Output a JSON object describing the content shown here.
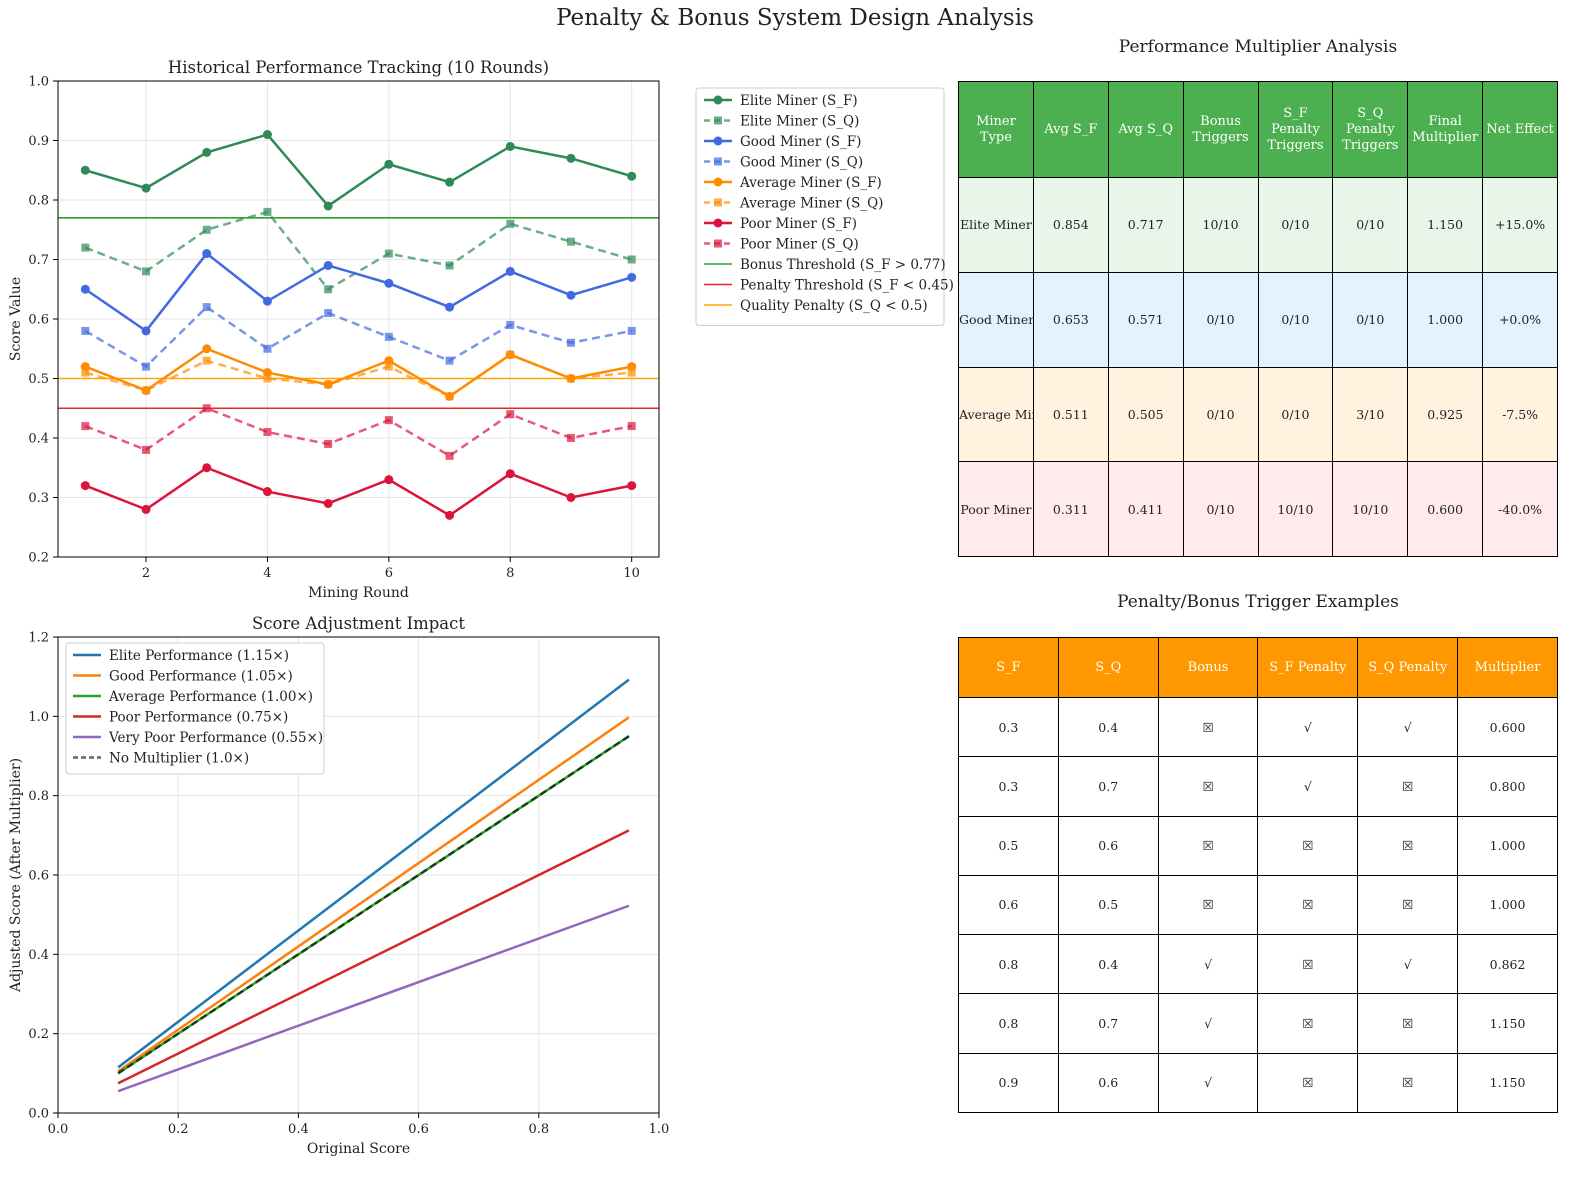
{
  "figure": {
    "title": "Penalty & Bonus System Design Analysis"
  },
  "chart_data": [
    {
      "type": "line",
      "title": "Historical Performance Tracking (10 Rounds)",
      "xlabel": "Mining Round",
      "ylabel": "Score Value",
      "xlim": [
        0.55,
        10.45
      ],
      "ylim": [
        0.2,
        1.0
      ],
      "xticks": [
        2,
        4,
        6,
        8,
        10
      ],
      "yticks": [
        0.2,
        0.3,
        0.4,
        0.5,
        0.6,
        0.7,
        0.8,
        0.9,
        1.0
      ],
      "grid": true,
      "legend_position": "outside-right",
      "x": [
        1,
        2,
        3,
        4,
        5,
        6,
        7,
        8,
        9,
        10
      ],
      "series": [
        {
          "name": "Elite Miner (S_F)",
          "color": "#2e8b57",
          "style": "solid",
          "marker": "circle",
          "values": [
            0.85,
            0.82,
            0.88,
            0.91,
            0.79,
            0.86,
            0.83,
            0.89,
            0.87,
            0.84
          ]
        },
        {
          "name": "Elite Miner (S_Q)",
          "color": "#2e8b57",
          "style": "dashed",
          "marker": "square",
          "values": [
            0.72,
            0.68,
            0.75,
            0.78,
            0.65,
            0.71,
            0.69,
            0.76,
            0.73,
            0.7
          ]
        },
        {
          "name": "Good Miner (S_F)",
          "color": "#4169e1",
          "style": "solid",
          "marker": "circle",
          "values": [
            0.65,
            0.58,
            0.71,
            0.63,
            0.69,
            0.66,
            0.62,
            0.68,
            0.64,
            0.67
          ]
        },
        {
          "name": "Good Miner (S_Q)",
          "color": "#4169e1",
          "style": "dashed",
          "marker": "square",
          "values": [
            0.58,
            0.52,
            0.62,
            0.55,
            0.61,
            0.57,
            0.53,
            0.59,
            0.56,
            0.58
          ]
        },
        {
          "name": "Average Miner (S_F)",
          "color": "#ff8c00",
          "style": "solid",
          "marker": "circle",
          "values": [
            0.52,
            0.48,
            0.55,
            0.51,
            0.49,
            0.53,
            0.47,
            0.54,
            0.5,
            0.52
          ]
        },
        {
          "name": "Average Miner (S_Q)",
          "color": "#ff8c00",
          "style": "dashed",
          "marker": "square",
          "values": [
            0.51,
            0.48,
            0.53,
            0.5,
            0.49,
            0.52,
            0.47,
            0.54,
            0.5,
            0.51
          ]
        },
        {
          "name": "Poor Miner (S_F)",
          "color": "#dc143c",
          "style": "solid",
          "marker": "circle",
          "values": [
            0.32,
            0.28,
            0.35,
            0.31,
            0.29,
            0.33,
            0.27,
            0.34,
            0.3,
            0.32
          ]
        },
        {
          "name": "Poor Miner (S_Q)",
          "color": "#dc143c",
          "style": "dashed",
          "marker": "square",
          "values": [
            0.42,
            0.38,
            0.45,
            0.41,
            0.39,
            0.43,
            0.37,
            0.44,
            0.4,
            0.42
          ]
        }
      ],
      "hlines": [
        {
          "name": "Bonus Threshold (S_F > 0.77)",
          "y": 0.77,
          "color": "#2ca02c"
        },
        {
          "name": "Penalty Threshold (S_F < 0.45)",
          "y": 0.45,
          "color": "#e8262a"
        },
        {
          "name": "Quality Penalty (S_Q < 0.5)",
          "y": 0.5,
          "color": "#ffa500"
        }
      ]
    },
    {
      "type": "line",
      "title": "Score Adjustment Impact",
      "xlabel": "Original Score",
      "ylabel": "Adjusted Score (After Multiplier)",
      "xlim": [
        0.0,
        1.0
      ],
      "ylim": [
        0.0,
        1.2
      ],
      "xticks": [
        0.0,
        0.2,
        0.4,
        0.6,
        0.8,
        1.0
      ],
      "yticks": [
        0.0,
        0.2,
        0.4,
        0.6,
        0.8,
        1.0,
        1.2
      ],
      "grid": true,
      "legend_position": "upper-left",
      "x_range": [
        0.1,
        0.95
      ],
      "series": [
        {
          "name": "Elite Performance (1.15×)",
          "multiplier": 1.15,
          "color": "#1f77b4",
          "style": "solid"
        },
        {
          "name": "Good Performance (1.05×)",
          "multiplier": 1.05,
          "color": "#ff7f0e",
          "style": "solid"
        },
        {
          "name": "Average Performance (1.00×)",
          "multiplier": 1.0,
          "color": "#2ca02c",
          "style": "solid"
        },
        {
          "name": "Poor Performance (0.75×)",
          "multiplier": 0.75,
          "color": "#d62728",
          "style": "solid"
        },
        {
          "name": "Very Poor Performance (0.55×)",
          "multiplier": 0.55,
          "color": "#9467bd",
          "style": "solid"
        },
        {
          "name": "No Multiplier (1.0×)",
          "multiplier": 1.0,
          "color": "#000000",
          "style": "dashed"
        }
      ]
    }
  ],
  "multiplier_table": {
    "title": "Performance Multiplier Analysis",
    "header_color": "#4caf50",
    "headers": [
      "Miner Type",
      "Avg S_F",
      "Avg S_Q",
      "Bonus Triggers",
      "S_F Penalty Triggers",
      "S_Q Penalty Triggers",
      "Final Multiplier",
      "Net Effect"
    ],
    "rows": [
      {
        "color": "#e8f5e9",
        "cells": [
          "Elite Miner",
          "0.854",
          "0.717",
          "10/10",
          "0/10",
          "0/10",
          "1.150",
          "+15.0%"
        ]
      },
      {
        "color": "#e3f2fd",
        "cells": [
          "Good Miner",
          "0.653",
          "0.571",
          "0/10",
          "0/10",
          "0/10",
          "1.000",
          "+0.0%"
        ]
      },
      {
        "color": "#fff3e0",
        "cells": [
          "Average Miner",
          "0.511",
          "0.505",
          "0/10",
          "0/10",
          "3/10",
          "0.925",
          "-7.5%"
        ]
      },
      {
        "color": "#ffebee",
        "cells": [
          "Poor Miner",
          "0.311",
          "0.411",
          "0/10",
          "10/10",
          "10/10",
          "0.600",
          "-40.0%"
        ]
      }
    ]
  },
  "trigger_table": {
    "title": "Penalty/Bonus Trigger Examples",
    "header_color": "#ff9800",
    "headers": [
      "S_F",
      "S_Q",
      "Bonus",
      "S_F Penalty",
      "S_Q Penalty",
      "Multiplier"
    ],
    "rows": [
      [
        "0.3",
        "0.4",
        "☒",
        "√",
        "√",
        "0.600"
      ],
      [
        "0.3",
        "0.7",
        "☒",
        "√",
        "☒",
        "0.800"
      ],
      [
        "0.5",
        "0.6",
        "☒",
        "☒",
        "☒",
        "1.000"
      ],
      [
        "0.6",
        "0.5",
        "☒",
        "☒",
        "☒",
        "1.000"
      ],
      [
        "0.8",
        "0.4",
        "√",
        "☒",
        "√",
        "0.862"
      ],
      [
        "0.8",
        "0.7",
        "√",
        "☒",
        "☒",
        "1.150"
      ],
      [
        "0.9",
        "0.6",
        "√",
        "☒",
        "☒",
        "1.150"
      ]
    ]
  }
}
